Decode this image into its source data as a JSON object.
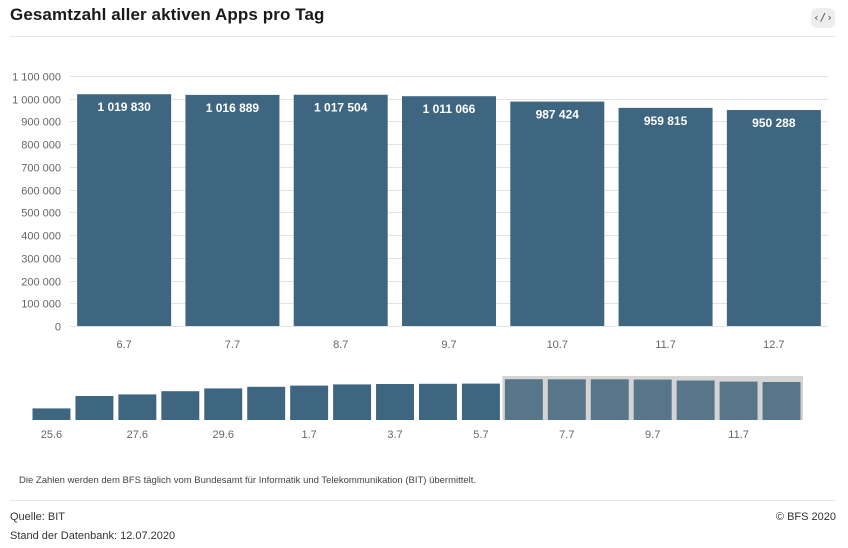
{
  "header": {
    "title": "Gesamtzahl aller aktiven Apps pro Tag",
    "embed_icon_label": "‹/›",
    "embed_icon": "code-embed-icon"
  },
  "colors": {
    "bar": "#3f6680",
    "bar_highlight": "#58768a",
    "navigator_mask": "#d4d4d4",
    "grid": "#e3e3e3",
    "tick_text": "#666666",
    "value_label": "#ffffff"
  },
  "chart_data": [
    {
      "type": "bar",
      "categories": [
        "6.7",
        "7.7",
        "8.7",
        "9.7",
        "10.7",
        "11.7",
        "12.7"
      ],
      "values": [
        1019830,
        1016889,
        1017504,
        1011066,
        987424,
        959815,
        950288
      ],
      "value_labels": [
        "1 019 830",
        "1 016 889",
        "1 017 504",
        "1 011 066",
        "987 424",
        "959 815",
        "950 288"
      ],
      "title": "Gesamtzahl aller aktiven Apps pro Tag",
      "xlabel": "",
      "ylabel": "",
      "ylim": [
        0,
        1100000
      ],
      "y_ticks": [
        0,
        100000,
        200000,
        300000,
        400000,
        500000,
        600000,
        700000,
        800000,
        900000,
        1000000,
        1100000
      ],
      "y_tick_labels": [
        "0",
        "100 000",
        "200 000",
        "300 000",
        "400 000",
        "500 000",
        "600 000",
        "700 000",
        "800 000",
        "900 000",
        "1 000 000",
        "1 100 000"
      ],
      "grid": true,
      "legend": "none"
    },
    {
      "type": "bar",
      "role": "navigator",
      "x_tick_labels": [
        "25.6",
        "27.6",
        "29.6",
        "1.7",
        "3.7",
        "5.7",
        "7.7",
        "9.7",
        "11.7"
      ],
      "tick_bar_index": [
        0,
        2,
        4,
        6,
        8,
        10,
        12,
        14,
        16
      ],
      "values": [
        290000,
        600000,
        640000,
        720000,
        790000,
        830000,
        860000,
        890000,
        900000,
        905000,
        910000,
        1019830,
        1016889,
        1017504,
        1011066,
        987424,
        959815,
        950288
      ],
      "ylim": [
        0,
        1100000
      ],
      "selected_range": [
        "6.7",
        "12.7"
      ]
    }
  ],
  "footer": {
    "note": "Die Zahlen werden dem BFS täglich vom Bundesamt für Informatik und Telekommunikation (BIT) übermittelt.",
    "source": "Quelle: BIT",
    "stand": "Stand der Datenbank: 12.07.2020",
    "copyright": "© BFS 2020"
  }
}
